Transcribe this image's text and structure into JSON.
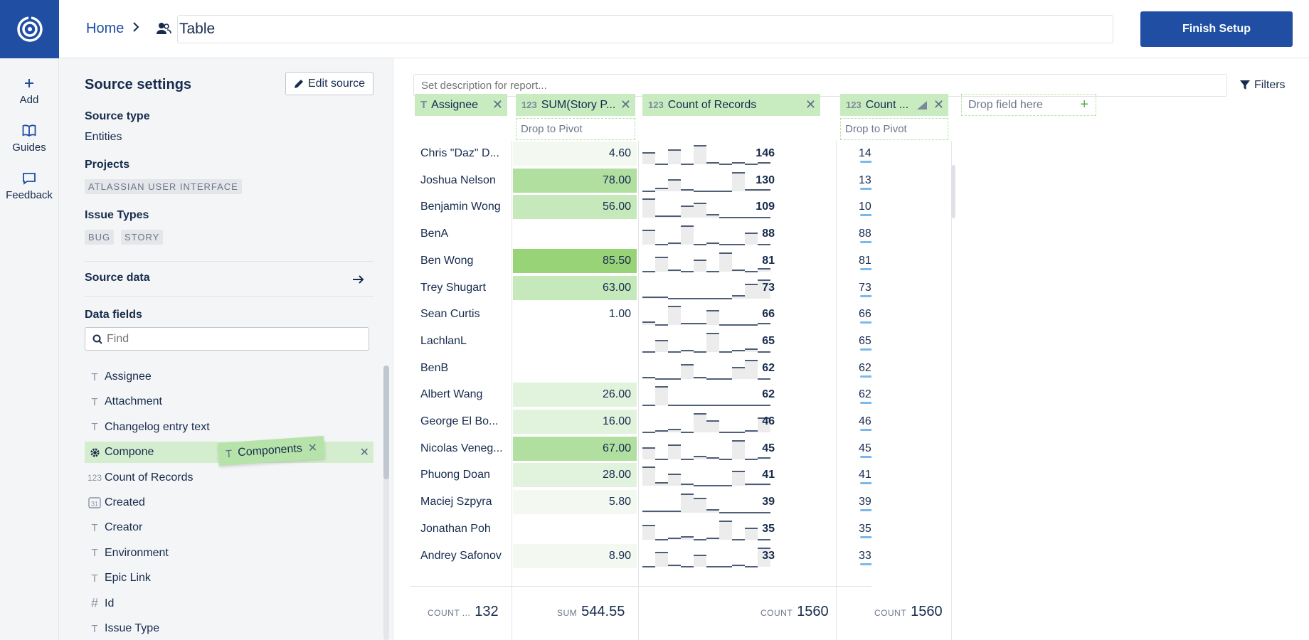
{
  "header": {
    "home_label": "Home",
    "report_title": "Table",
    "finish_label": "Finish Setup"
  },
  "rail": {
    "items": [
      {
        "label": "Add",
        "icon": "plus-icon"
      },
      {
        "label": "Guides",
        "icon": "book-icon"
      },
      {
        "label": "Feedback",
        "icon": "chat-icon"
      }
    ]
  },
  "sidebar": {
    "title": "Source settings",
    "edit_source_label": "Edit source",
    "source_type_label": "Source type",
    "source_type_value": "Entities",
    "projects_label": "Projects",
    "projects": [
      "ATLASSIAN USER INTERFACE"
    ],
    "issue_types_label": "Issue Types",
    "issue_types": [
      "BUG",
      "STORY"
    ],
    "source_data_label": "Source data",
    "data_fields_label": "Data fields",
    "find_placeholder": "Find",
    "fields": [
      {
        "label": "Assignee",
        "type": "T"
      },
      {
        "label": "Attachment",
        "type": "T"
      },
      {
        "label": "Changelog entry text",
        "type": "T"
      },
      {
        "label": "Compone",
        "type": "gear"
      },
      {
        "label": "Count of Records",
        "type": "123"
      },
      {
        "label": "Created",
        "type": "31"
      },
      {
        "label": "Creator",
        "type": "T"
      },
      {
        "label": "Environment",
        "type": "T"
      },
      {
        "label": "Epic Link",
        "type": "T"
      },
      {
        "label": "Id",
        "type": "#"
      },
      {
        "label": "Issue Type",
        "type": "T"
      }
    ],
    "drag_chip_label": "Components"
  },
  "main": {
    "description_placeholder": "Set description for report...",
    "filters_label": "Filters",
    "columns": [
      {
        "label": "Assignee",
        "type": "T"
      },
      {
        "label": "SUM(Story P...",
        "type": "123"
      },
      {
        "label": "Count of Records",
        "type": "123"
      },
      {
        "label": "Count ...",
        "type": "123"
      }
    ],
    "drop_pivot_label": "Drop to Pivot",
    "drop_field_label": "Drop field here",
    "rows": [
      {
        "name": "Chris \"Daz\" D...",
        "sum": "4.60",
        "count": "146",
        "level": 1
      },
      {
        "name": "Joshua Nelson",
        "sum": "78.00",
        "count": "130",
        "level": 4
      },
      {
        "name": "Benjamin Wong",
        "sum": "56.00",
        "count": "109",
        "level": 3
      },
      {
        "name": "BenA",
        "sum": "",
        "count": "88",
        "level": 0
      },
      {
        "name": "Ben Wong",
        "sum": "85.50",
        "count": "81",
        "level": 5
      },
      {
        "name": "Trey Shugart",
        "sum": "63.00",
        "count": "73",
        "level": 3
      },
      {
        "name": "Sean Curtis",
        "sum": "1.00",
        "count": "66",
        "level": 0
      },
      {
        "name": "LachlanL",
        "sum": "",
        "count": "65",
        "level": 0
      },
      {
        "name": "BenB",
        "sum": "",
        "count": "62",
        "level": 0
      },
      {
        "name": "Albert Wang",
        "sum": "26.00",
        "count": "62",
        "level": 2
      },
      {
        "name": "George El Bo...",
        "sum": "16.00",
        "count": "46",
        "level": 2
      },
      {
        "name": "Nicolas Veneg...",
        "sum": "67.00",
        "count": "45",
        "level": 4
      },
      {
        "name": "Phuong Doan",
        "sum": "28.00",
        "count": "41",
        "level": 2
      },
      {
        "name": "Maciej Szpyra",
        "sum": "5.80",
        "count": "39",
        "level": 1
      },
      {
        "name": "Jonathan Poh",
        "sum": "",
        "count": "35",
        "level": 0
      },
      {
        "name": "Andrey Safonov",
        "sum": "8.90",
        "count": "33",
        "level": 1
      }
    ],
    "footer": [
      {
        "key": "COUNT ...",
        "value": "132"
      },
      {
        "key": "SUM",
        "value": "544.55"
      },
      {
        "key": "COUNT",
        "value": "1560"
      },
      {
        "key": "COUNT",
        "value": "1560"
      }
    ],
    "max_count": 146
  },
  "colors": {
    "brand": "#1f4ea3",
    "header_green": "#c9ebc0",
    "heat": [
      "#ffffff",
      "#f3f9f1",
      "#e1f3dc",
      "#c5e9bb",
      "#b0df9f",
      "#99d377"
    ],
    "bar_blue": "#79b9ec"
  }
}
